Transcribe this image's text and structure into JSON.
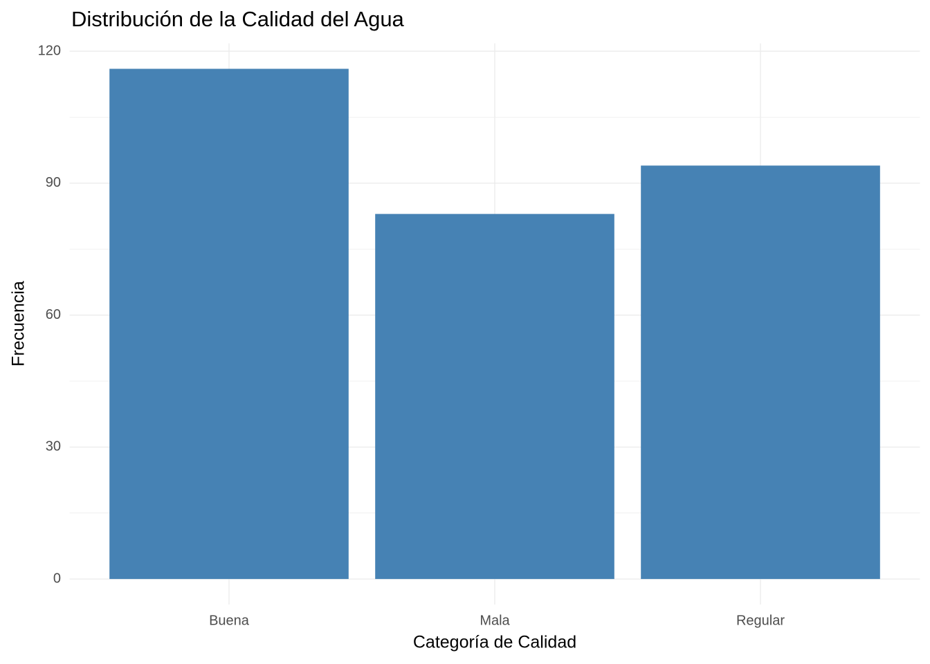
{
  "chart_data": {
    "type": "bar",
    "title": "Distribución de la Calidad del Agua",
    "x_label": "Categoría de Calidad",
    "y_label": "Frecuencia",
    "categories": [
      "Buena",
      "Mala",
      "Regular"
    ],
    "values": [
      116,
      83,
      94
    ],
    "color": "#4682b4",
    "ylim": [
      -5.8,
      121.8
    ],
    "yticks": [
      0,
      30,
      60,
      90,
      120
    ],
    "minor_yticks": [
      15,
      45,
      75,
      105
    ],
    "grid": true
  }
}
